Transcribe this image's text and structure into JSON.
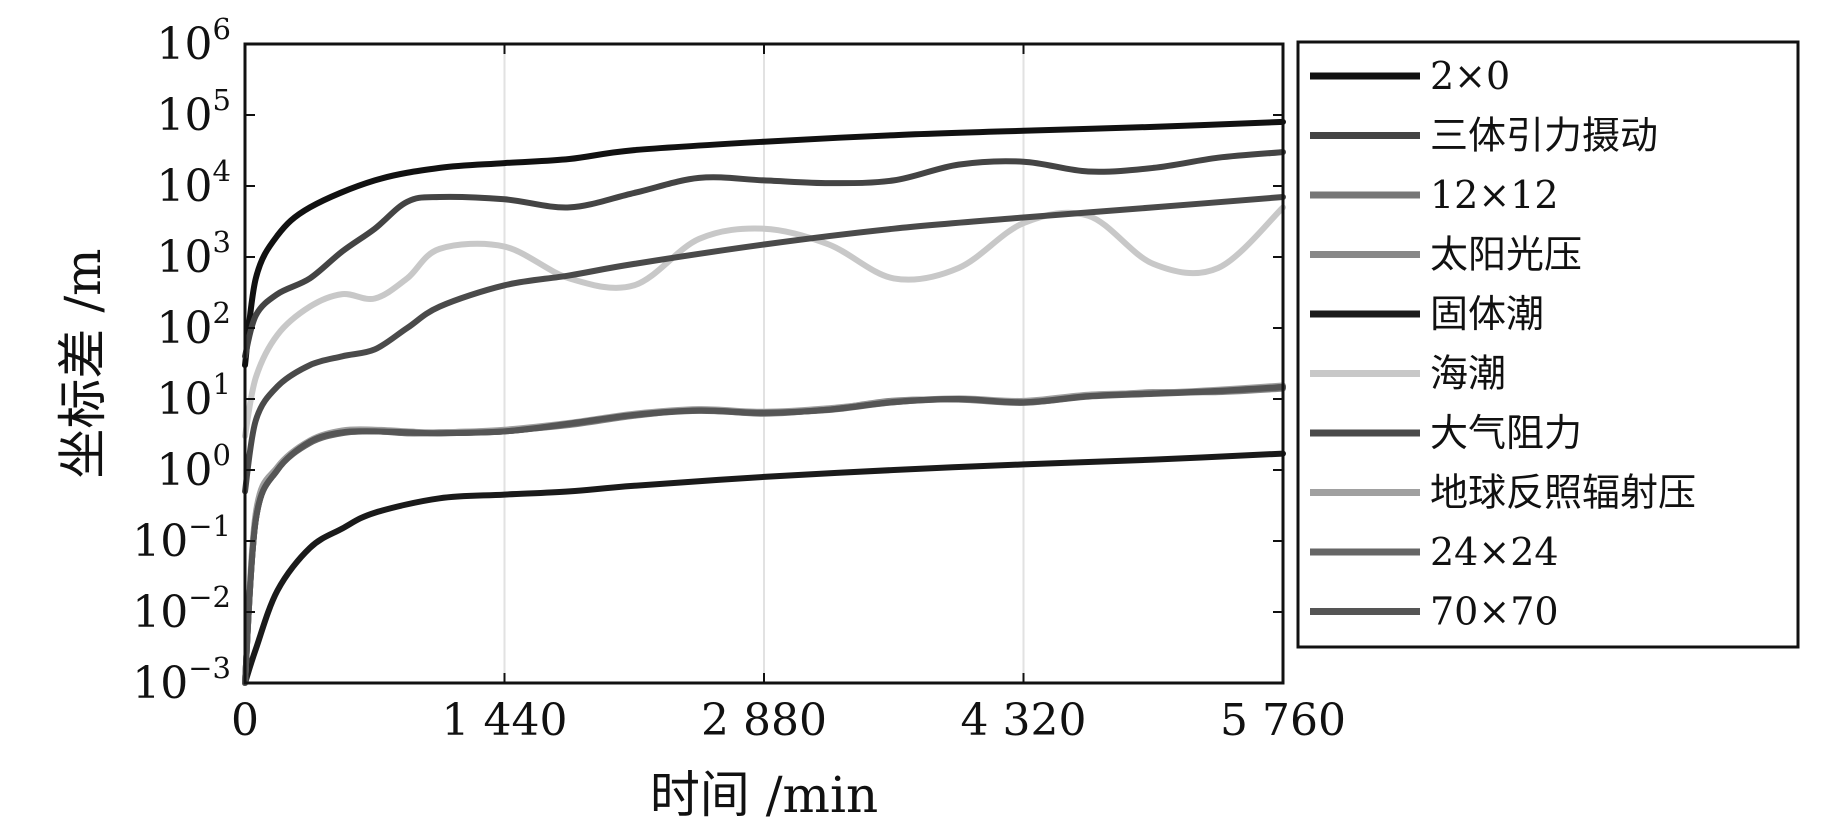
{
  "chart_data": {
    "type": "line",
    "title": "",
    "xlabel": "时间 /min",
    "ylabel": "坐标差 /m",
    "xlim": [
      0,
      5760
    ],
    "x_ticks": [
      0,
      1440,
      2880,
      4320,
      5760
    ],
    "x_tick_labels": [
      "0",
      "1 440",
      "2 880",
      "4 320",
      "5 760"
    ],
    "y_scale": "log",
    "ylim": [
      0.001,
      1000000
    ],
    "y_ticks": [
      {
        "value": 0.001,
        "base": "10",
        "exp": "−3"
      },
      {
        "value": 0.01,
        "base": "10",
        "exp": "−2"
      },
      {
        "value": 0.1,
        "base": "10",
        "exp": "−1"
      },
      {
        "value": 1,
        "base": "10",
        "exp": "0"
      },
      {
        "value": 10,
        "base": "10",
        "exp": "1"
      },
      {
        "value": 100,
        "base": "10",
        "exp": "2"
      },
      {
        "value": 1000,
        "base": "10",
        "exp": "3"
      },
      {
        "value": 10000,
        "base": "10",
        "exp": "4"
      },
      {
        "value": 100000,
        "base": "10",
        "exp": "5"
      },
      {
        "value": 1000000,
        "base": "10",
        "exp": "6"
      }
    ],
    "grid": true,
    "legend_position": "right-outside",
    "series": [
      {
        "name": "2×0",
        "color": "#111111",
        "x": [
          0,
          60,
          180,
          360,
          720,
          1080,
          1440,
          1800,
          2160,
          2880,
          3600,
          4320,
          5040,
          5760
        ],
        "y": [
          30,
          500,
          2000,
          5000,
          12000,
          18000,
          21000,
          24000,
          32000,
          42000,
          52000,
          60000,
          68000,
          80000
        ]
      },
      {
        "name": "三体引力摄动",
        "color": "#444444",
        "x": [
          0,
          60,
          180,
          360,
          540,
          720,
          900,
          1080,
          1440,
          1800,
          2160,
          2520,
          2880,
          3240,
          3600,
          3960,
          4320,
          4680,
          5040,
          5400,
          5760
        ],
        "y": [
          40,
          150,
          300,
          500,
          1200,
          2500,
          6000,
          7000,
          6500,
          5000,
          8000,
          13000,
          12000,
          11000,
          12000,
          20000,
          22000,
          16000,
          18000,
          25000,
          30000
        ]
      },
      {
        "name": "12×12",
        "color": "#777777",
        "x": [
          0,
          60,
          180,
          360,
          540,
          720,
          900,
          1080,
          1440,
          1800,
          2160,
          2520,
          2880,
          3240,
          3600,
          3960,
          4320,
          4680,
          5040,
          5400,
          5760
        ],
        "y": [
          0.001,
          0.2,
          1,
          2.5,
          3.5,
          3.5,
          3.4,
          3.3,
          3.5,
          4.5,
          6,
          7,
          6.5,
          7,
          9,
          10,
          9,
          11,
          12,
          13,
          15
        ]
      },
      {
        "name": "太阳光压",
        "color": "#888888",
        "x": [
          0,
          60,
          180,
          360,
          540,
          720,
          900,
          1080,
          1440,
          1800,
          2160,
          2520,
          2880,
          3240,
          3600,
          3960,
          4320,
          4680,
          5040,
          5400,
          5760
        ],
        "y": [
          0.001,
          0.2,
          1,
          2.5,
          3.4,
          3.6,
          3.3,
          3.4,
          3.6,
          4.3,
          5.8,
          7,
          6.2,
          7.2,
          9.5,
          9.8,
          8.8,
          11,
          12.5,
          12.5,
          14
        ]
      },
      {
        "name": "固体潮",
        "color": "#1a1a1a",
        "x": [
          0,
          60,
          180,
          360,
          540,
          720,
          1080,
          1440,
          1800,
          2160,
          2880,
          3600,
          4320,
          5040,
          5760
        ],
        "y": [
          0.001,
          0.003,
          0.02,
          0.08,
          0.15,
          0.25,
          0.4,
          0.45,
          0.5,
          0.6,
          0.8,
          1,
          1.2,
          1.4,
          1.7
        ]
      },
      {
        "name": "海潮",
        "color": "#c8c8c8",
        "x": [
          0,
          60,
          180,
          360,
          540,
          720,
          900,
          1080,
          1440,
          1800,
          2160,
          2520,
          2880,
          3240,
          3600,
          3960,
          4320,
          4680,
          5040,
          5400,
          5760
        ],
        "y": [
          3,
          20,
          80,
          200,
          300,
          260,
          500,
          1300,
          1400,
          500,
          400,
          1800,
          2500,
          1500,
          500,
          700,
          3000,
          3800,
          800,
          700,
          5000
        ]
      },
      {
        "name": "大气阻力",
        "color": "#4a4a4a",
        "x": [
          0,
          60,
          180,
          360,
          540,
          720,
          900,
          1080,
          1440,
          1800,
          2160,
          2880,
          3600,
          4320,
          5040,
          5760
        ],
        "y": [
          0.5,
          5,
          15,
          30,
          40,
          50,
          100,
          200,
          400,
          550,
          800,
          1500,
          2500,
          3600,
          5000,
          7000
        ]
      },
      {
        "name": "地球反照辐射压",
        "color": "#a0a0a0",
        "x": [
          0,
          60,
          180,
          360,
          540,
          720,
          900,
          1080,
          1440,
          1800,
          2160,
          2520,
          2880,
          3240,
          3600,
          3960,
          4320,
          4680,
          5040,
          5400,
          5760
        ],
        "y": [
          0.001,
          0.25,
          1.1,
          2.6,
          3.6,
          3.7,
          3.5,
          3.4,
          3.7,
          4.6,
          6.2,
          7.2,
          6.6,
          7.4,
          9.2,
          10.2,
          9.4,
          11.5,
          12.2,
          13.5,
          15.5
        ]
      },
      {
        "name": "24×24",
        "color": "#666666",
        "x": [
          0,
          60,
          180,
          360,
          540,
          720,
          900,
          1080,
          1440,
          1800,
          2160,
          2520,
          2880,
          3240,
          3600,
          3960,
          4320,
          4680,
          5040,
          5400,
          5760
        ],
        "y": [
          0.001,
          0.2,
          1,
          2.4,
          3.3,
          3.5,
          3.3,
          3.3,
          3.5,
          4.4,
          5.9,
          6.8,
          6.3,
          7.1,
          9,
          9.9,
          8.9,
          10.8,
          11.8,
          12.8,
          14.5
        ]
      },
      {
        "name": "70×70",
        "color": "#555555",
        "x": [
          0,
          60,
          180,
          360,
          540,
          720,
          900,
          1080,
          1440,
          1800,
          2160,
          2520,
          2880,
          3240,
          3600,
          3960,
          4320,
          4680,
          5040,
          5400,
          5760
        ],
        "y": [
          0.001,
          0.2,
          1,
          2.5,
          3.4,
          3.5,
          3.4,
          3.3,
          3.5,
          4.5,
          6,
          6.9,
          6.4,
          7.1,
          9.1,
          10,
          9,
          11,
          12,
          13,
          14.8
        ]
      }
    ]
  }
}
